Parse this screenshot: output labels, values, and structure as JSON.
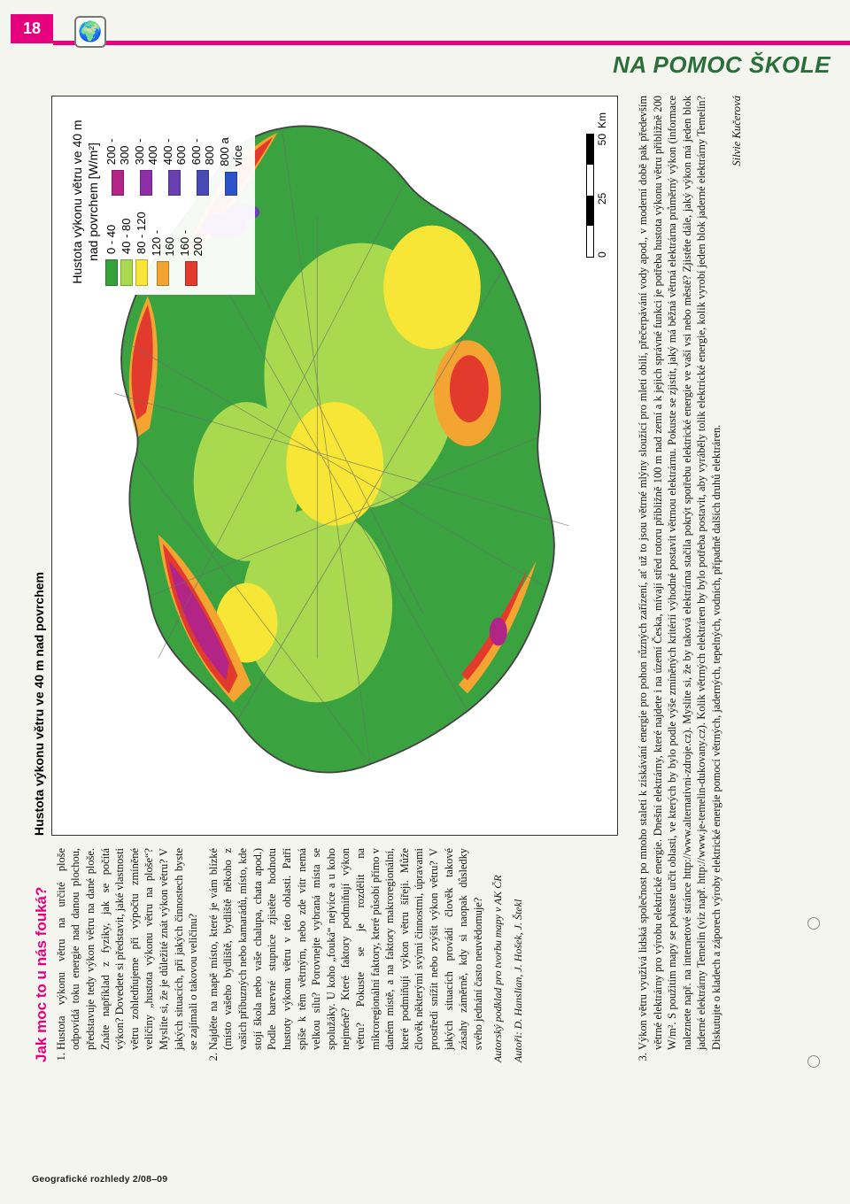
{
  "page_number": "18",
  "header_title": "NA POMOC ŠKOLE",
  "title": "Jak moc to u nás fouká?",
  "map": {
    "title": "Hustota výkonu větru ve 40 m nad povrchem",
    "legend_title": "Hustota výkonu větru ve 40 m nad povrchem [W/m²]",
    "col_a": [
      {
        "color": "#35a13a",
        "label": "0 - 40"
      },
      {
        "color": "#a9d94e",
        "label": "40 - 80"
      },
      {
        "color": "#f7e635",
        "label": "80 - 120"
      },
      {
        "color": "#f4a531",
        "label": "120 - 160"
      },
      {
        "color": "#e23b2e",
        "label": "160 - 200"
      }
    ],
    "col_b": [
      {
        "color": "#b22587",
        "label": "200 - 300"
      },
      {
        "color": "#8e2fa8",
        "label": "300 - 400"
      },
      {
        "color": "#6a3fb0",
        "label": "400 - 600"
      },
      {
        "color": "#4a4ab5",
        "label": "600 - 800"
      },
      {
        "color": "#2b54c8",
        "label": "800 a více"
      }
    ],
    "scale_ticks": [
      "0",
      "25",
      "50"
    ],
    "scale_unit": "Km",
    "credit_line1": "Autorský podklad pro tvorbu mapy v AK ČR",
    "credit_line2": "Autoři: D. Hanslian, J. Hošek, J. Štekl",
    "map_palette": {
      "bg": "#ffffff",
      "border": "#5b5b5b"
    }
  },
  "left_items": [
    "Hustota výkonu větru na určité ploše odpovídá toku energie nad danou plochou, představuje tedy výkon větru na dané ploše. Znáte například z fyziky, jak se počítá výkon? Dovedete si představit, jaké vlastnosti větru zohledňujeme při výpočtu zmíněné veličiny „hustota výkonu větru na ploše“? Myslíte si, že je důležité znát výkon větru? V jakých situacích, při jakých činnostech byste se zajímali o takovou veličinu?",
    "Najděte na mapě místo, které je vám blízké (místo vašeho bydliště, bydliště někoho z vašich příbuzných nebo kamarádů, místo, kde stojí škola nebo vaše chalupa, chata apod.) Podle barevné stupnice zjistěte hodnotu hustoty výkonu větru v této oblasti. Patří spíše k těm větrným, nebo zde vítr nemá velkou sílu? Porovnejte vybraná místa se spolužáky. U koho „fouká“ nejvíce a u koho nejméně? Které faktory podmiňují výkon větru? Pokuste se je rozdělit na mikroregionální faktory, které působí přímo v daném místě, a na faktory makroregionální, které podmiňují výkon větru šířeji. Může člověk některými svými činnostmi, úpravami prostředí snížit nebo zvýšit výkon větru? V jakých situacích provádí člověk takové zásahy záměrně, kdy si naopak důsledky svého jednání často neuvědomuje?"
  ],
  "bottom_item_index": "3.",
  "bottom_item": "Výkon větru využívá lidská společnost po mnoho staletí k získávání energie pro pohon různých zařízení, ať už to jsou větrné mlýny sloužící pro mletí obilí, přečerpávání vody apod., v moderní době pak především větrné elektrárny pro výrobu elektrické energie. Dnešní elektrárny, které najdete i na území Česka, mívají střed rotoru přibližně 100 m nad zemí a k jejich správné funkci je potřeba hustota výkonu větru přibližně 200 W/m². S použitím mapy se pokuste určit oblasti, ve kterých by bylo podle výše zmíněných kritérií výhodné postavit větrnou elektrárnu. Pokuste se zjistit, jaký má běžná větrná elektrárna průměrný výkon (informace naleznete např. na internetové stránce http://www.alternativni-zdroje.cz). Myslíte si, že by taková elektrárna stačila pokrýt spotřebu elektrické energie ve vaší vsi nebo městě? Zjistěte dále, jaký výkon má jeden blok jaderné elektrárny Temelín (viz např. http://www.je-temelin-dukovany.cz). Kolik větrných elektráren by bylo potřeba postavit, aby vyráběly tolik elektrické energie, kolik vyrobí jeden blok jaderné elektrárny Temelín? Diskutujte o kladech a záporech výroby elektrické energie pomocí větrných, jaderných, tepelných, vodních, případně dalších druhů elektráren.",
  "author": "Silvie Kučerová",
  "footer": "Geografické rozhledy  2/08–09"
}
